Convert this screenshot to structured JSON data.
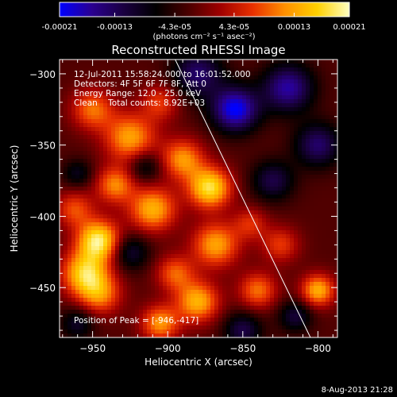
{
  "chart_data": {
    "type": "heatmap",
    "title": "Reconstructed RHESSI Image",
    "colorbar": {
      "tick_labels": [
        "-0.00021",
        "-0.00013",
        "-4.3e-05",
        "4.3e-05",
        "0.00013",
        "0.00021"
      ],
      "tick_values": [
        -0.00021,
        -0.00013,
        -4.3e-05,
        4.3e-05,
        0.00013,
        0.00021
      ],
      "range": [
        -0.00021,
        0.00021
      ],
      "units_label": "(photons cm⁻² s⁻¹ asec⁻²)",
      "colormap": [
        "#0000ff",
        "#2a0090",
        "#1a0040",
        "#000000",
        "#4a0000",
        "#a00000",
        "#e83000",
        "#ff9000",
        "#ffd000",
        "#ffffc0"
      ]
    },
    "xlabel": "Heliocentric X (arcsec)",
    "ylabel": "Heliocentric Y (arcsec)",
    "xlim": [
      -972,
      -787
    ],
    "ylim": [
      -485,
      -290
    ],
    "x_ticks": [
      -950,
      -900,
      -850,
      -800
    ],
    "x_tick_labels": [
      "−950",
      "−900",
      "−850",
      "−800"
    ],
    "y_ticks": [
      -450,
      -400,
      -350,
      -300
    ],
    "y_tick_labels": [
      "−450",
      "−400",
      "−350",
      "−300"
    ],
    "annotations": [
      "12-Jul-2011 15:58:24.000 to 16:01:52.000",
      "Detectors: 4F 5F 6F 7F 8F, Att 0",
      "Energy Range: 12.0 - 25.0 keV",
      "Clean    Total counts: 8.92E+03"
    ],
    "peak_label": "Position of Peak = [-946,-417]",
    "peak": [
      -946,
      -417
    ],
    "limb_line": [
      [
        -895,
        -290
      ],
      [
        -805,
        -485
      ]
    ],
    "blobs": [
      {
        "x": -946,
        "y": -417,
        "value": 0.00021,
        "sigma": 10
      },
      {
        "x": -955,
        "y": -440,
        "value": 0.00018,
        "sigma": 11
      },
      {
        "x": -945,
        "y": -455,
        "value": 0.00012,
        "sigma": 10
      },
      {
        "x": -962,
        "y": -395,
        "value": 0.0001,
        "sigma": 9
      },
      {
        "x": -935,
        "y": -378,
        "value": 0.00013,
        "sigma": 9
      },
      {
        "x": -925,
        "y": -345,
        "value": 0.00015,
        "sigma": 12
      },
      {
        "x": -950,
        "y": -325,
        "value": 0.00012,
        "sigma": 10
      },
      {
        "x": -905,
        "y": -320,
        "value": 9e-05,
        "sigma": 9
      },
      {
        "x": -910,
        "y": -395,
        "value": 0.00016,
        "sigma": 11
      },
      {
        "x": -890,
        "y": -360,
        "value": 0.00014,
        "sigma": 10
      },
      {
        "x": -872,
        "y": -380,
        "value": 0.0002,
        "sigma": 10
      },
      {
        "x": -868,
        "y": -420,
        "value": 0.00015,
        "sigma": 11
      },
      {
        "x": -895,
        "y": -440,
        "value": 0.00011,
        "sigma": 9
      },
      {
        "x": -880,
        "y": -460,
        "value": 0.00016,
        "sigma": 10
      },
      {
        "x": -905,
        "y": -475,
        "value": 0.00014,
        "sigma": 9
      },
      {
        "x": -840,
        "y": -452,
        "value": 0.00012,
        "sigma": 9
      },
      {
        "x": -825,
        "y": -420,
        "value": 9e-05,
        "sigma": 9
      },
      {
        "x": -800,
        "y": -452,
        "value": 0.00016,
        "sigma": 8
      },
      {
        "x": -845,
        "y": -405,
        "value": 8e-05,
        "sigma": 8
      },
      {
        "x": -880,
        "y": -300,
        "value": -0.00012,
        "sigma": 12
      },
      {
        "x": -855,
        "y": -325,
        "value": -0.00019,
        "sigma": 11
      },
      {
        "x": -820,
        "y": -310,
        "value": -0.00015,
        "sigma": 12
      },
      {
        "x": -800,
        "y": -350,
        "value": -0.00012,
        "sigma": 11
      },
      {
        "x": -830,
        "y": -375,
        "value": -0.0001,
        "sigma": 10
      },
      {
        "x": -925,
        "y": -425,
        "value": -9e-05,
        "sigma": 9
      },
      {
        "x": -915,
        "y": -365,
        "value": -8e-05,
        "sigma": 8
      },
      {
        "x": -960,
        "y": -475,
        "value": -8e-05,
        "sigma": 8
      },
      {
        "x": -850,
        "y": -480,
        "value": -0.0001,
        "sigma": 9
      },
      {
        "x": -815,
        "y": -470,
        "value": -9e-05,
        "sigma": 8
      },
      {
        "x": -960,
        "y": -370,
        "value": -7e-05,
        "sigma": 7
      }
    ]
  },
  "footer": {
    "timestamp": "8-Aug-2013 21:28"
  }
}
